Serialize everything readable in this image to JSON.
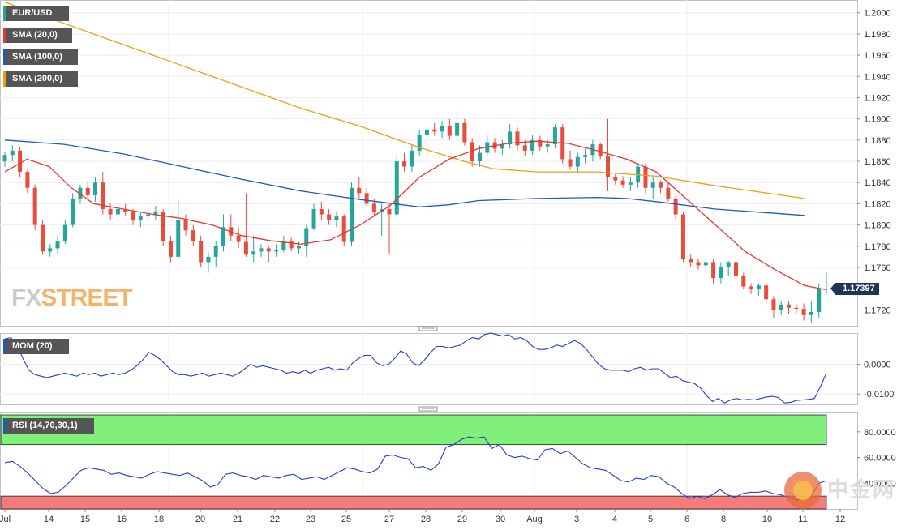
{
  "chart_data": {
    "type": "candlestick",
    "symbol": "EUR/USD",
    "legend": [
      {
        "label": "EUR/USD",
        "color": "#26a69a"
      },
      {
        "label": "SMA (20,0)",
        "color": "#e53935"
      },
      {
        "label": "SMA (100,0)",
        "color": "#1e5bbd"
      },
      {
        "label": "SMA (200,0)",
        "color": "#f39c12"
      }
    ],
    "last_price": "1.17397",
    "price_axis": {
      "min": 1.1705,
      "max": 1.2012,
      "ticks": [
        "1.2000",
        "1.1980",
        "1.1960",
        "1.1940",
        "1.1920",
        "1.1900",
        "1.1880",
        "1.1860",
        "1.1840",
        "1.1820",
        "1.1800",
        "1.1780",
        "1.1760",
        "1.1720"
      ]
    },
    "x_labels": [
      "Jul",
      "14",
      "15",
      "16",
      "18",
      "20",
      "21",
      "22",
      "23",
      "25",
      "27",
      "28",
      "29",
      "30",
      "Aug",
      "3",
      "4",
      "5",
      "6",
      "8",
      "10",
      "11",
      "12"
    ],
    "candles": [
      [
        1.186,
        1.1869,
        1.1855,
        1.1866
      ],
      [
        1.1866,
        1.1875,
        1.186,
        1.187
      ],
      [
        1.187,
        1.1873,
        1.1845,
        1.185
      ],
      [
        1.185,
        1.1852,
        1.183,
        1.1835
      ],
      [
        1.1835,
        1.1838,
        1.1795,
        1.18
      ],
      [
        1.18,
        1.1805,
        1.1772,
        1.1775
      ],
      [
        1.1775,
        1.1782,
        1.177,
        1.1778
      ],
      [
        1.1778,
        1.179,
        1.1772,
        1.1785
      ],
      [
        1.1785,
        1.1805,
        1.1782,
        1.18
      ],
      [
        1.18,
        1.183,
        1.1798,
        1.1825
      ],
      [
        1.1825,
        1.1838,
        1.182,
        1.1835
      ],
      [
        1.1835,
        1.184,
        1.1825,
        1.1828
      ],
      [
        1.1828,
        1.1845,
        1.1822,
        1.184
      ],
      [
        1.184,
        1.185,
        1.181,
        1.1815
      ],
      [
        1.1815,
        1.182,
        1.1805,
        1.181
      ],
      [
        1.181,
        1.1818,
        1.1805,
        1.1815
      ],
      [
        1.1815,
        1.182,
        1.1808,
        1.1812
      ],
      [
        1.1812,
        1.1815,
        1.18,
        1.1805
      ],
      [
        1.1805,
        1.1812,
        1.1798,
        1.1808
      ],
      [
        1.1808,
        1.1815,
        1.1802,
        1.181
      ],
      [
        1.181,
        1.1818,
        1.1805,
        1.1812
      ],
      [
        1.1812,
        1.1815,
        1.178,
        1.1785
      ],
      [
        1.1785,
        1.179,
        1.1765,
        1.177
      ],
      [
        1.177,
        1.1825,
        1.1768,
        1.1805
      ],
      [
        1.1805,
        1.181,
        1.179,
        1.1795
      ],
      [
        1.1795,
        1.18,
        1.178,
        1.1785
      ],
      [
        1.1785,
        1.179,
        1.176,
        1.1765
      ],
      [
        1.1765,
        1.1775,
        1.1755,
        1.177
      ],
      [
        1.177,
        1.1785,
        1.176,
        1.178
      ],
      [
        1.178,
        1.181,
        1.1775,
        1.1798
      ],
      [
        1.1798,
        1.181,
        1.1785,
        1.179
      ],
      [
        1.179,
        1.1798,
        1.1778,
        1.1784
      ],
      [
        1.1784,
        1.183,
        1.177,
        1.1772
      ],
      [
        1.1772,
        1.179,
        1.1765,
        1.1775
      ],
      [
        1.1775,
        1.1782,
        1.177,
        1.1778
      ],
      [
        1.1778,
        1.178,
        1.1765,
        1.1775
      ],
      [
        1.1775,
        1.1782,
        1.177,
        1.1776
      ],
      [
        1.1776,
        1.179,
        1.1774,
        1.1785
      ],
      [
        1.1785,
        1.1788,
        1.1775,
        1.1778
      ],
      [
        1.1778,
        1.1784,
        1.1773,
        1.178
      ],
      [
        1.178,
        1.18,
        1.177,
        1.1797
      ],
      [
        1.1797,
        1.182,
        1.1795,
        1.1815
      ],
      [
        1.1815,
        1.1822,
        1.1805,
        1.181
      ],
      [
        1.181,
        1.1815,
        1.18,
        1.1805
      ],
      [
        1.1805,
        1.1812,
        1.1798,
        1.1808
      ],
      [
        1.1808,
        1.181,
        1.178,
        1.1784
      ],
      [
        1.1784,
        1.184,
        1.178,
        1.1835
      ],
      [
        1.1835,
        1.1845,
        1.1825,
        1.183
      ],
      [
        1.183,
        1.1835,
        1.1818,
        1.182
      ],
      [
        1.182,
        1.1825,
        1.1808,
        1.1812
      ],
      [
        1.1812,
        1.182,
        1.179,
        1.1815
      ],
      [
        1.1815,
        1.182,
        1.1773,
        1.181
      ],
      [
        1.181,
        1.1865,
        1.1808,
        1.186
      ],
      [
        1.186,
        1.1868,
        1.185,
        1.1855
      ],
      [
        1.1855,
        1.1875,
        1.185,
        1.187
      ],
      [
        1.187,
        1.189,
        1.1865,
        1.1885
      ],
      [
        1.1885,
        1.1895,
        1.188,
        1.189
      ],
      [
        1.189,
        1.1896,
        1.1884,
        1.1888
      ],
      [
        1.1888,
        1.1898,
        1.1882,
        1.1893
      ],
      [
        1.1893,
        1.19,
        1.188,
        1.1884
      ],
      [
        1.1884,
        1.1908,
        1.1882,
        1.1896
      ],
      [
        1.1896,
        1.19,
        1.1875,
        1.1878
      ],
      [
        1.1878,
        1.1882,
        1.1855,
        1.186
      ],
      [
        1.186,
        1.1875,
        1.1855,
        1.1868
      ],
      [
        1.1868,
        1.1885,
        1.1865,
        1.1878
      ],
      [
        1.1878,
        1.1882,
        1.1868,
        1.1872
      ],
      [
        1.1872,
        1.188,
        1.1866,
        1.1876
      ],
      [
        1.1876,
        1.1895,
        1.1872,
        1.1888
      ],
      [
        1.1888,
        1.1892,
        1.187,
        1.1875
      ],
      [
        1.1875,
        1.188,
        1.1865,
        1.187
      ],
      [
        1.187,
        1.1885,
        1.1866,
        1.188
      ],
      [
        1.188,
        1.1884,
        1.187,
        1.1874
      ],
      [
        1.1874,
        1.188,
        1.1868,
        1.1876
      ],
      [
        1.1876,
        1.1895,
        1.1872,
        1.1892
      ],
      [
        1.1892,
        1.1895,
        1.1858,
        1.1862
      ],
      [
        1.1862,
        1.187,
        1.1852,
        1.1855
      ],
      [
        1.1855,
        1.1868,
        1.185,
        1.1864
      ],
      [
        1.1864,
        1.1872,
        1.1858,
        1.1866
      ],
      [
        1.1866,
        1.188,
        1.186,
        1.1876
      ],
      [
        1.1876,
        1.1878,
        1.1862,
        1.1865
      ],
      [
        1.1865,
        1.19,
        1.1832,
        1.1845
      ],
      [
        1.1845,
        1.1848,
        1.1838,
        1.1842
      ],
      [
        1.1842,
        1.1846,
        1.1835,
        1.1838
      ],
      [
        1.1838,
        1.1845,
        1.1832,
        1.184
      ],
      [
        1.184,
        1.1858,
        1.1835,
        1.1855
      ],
      [
        1.1855,
        1.1858,
        1.183,
        1.1835
      ],
      [
        1.1835,
        1.1845,
        1.1825,
        1.184
      ],
      [
        1.184,
        1.1842,
        1.183,
        1.1835
      ],
      [
        1.1835,
        1.184,
        1.1822,
        1.1825
      ],
      [
        1.1825,
        1.1828,
        1.1805,
        1.181
      ],
      [
        1.181,
        1.1812,
        1.1765,
        1.1768
      ],
      [
        1.1768,
        1.1772,
        1.176,
        1.1765
      ],
      [
        1.1765,
        1.1768,
        1.1758,
        1.1762
      ],
      [
        1.1762,
        1.1768,
        1.1755,
        1.1765
      ],
      [
        1.1765,
        1.1768,
        1.1745,
        1.175
      ],
      [
        1.175,
        1.1765,
        1.1745,
        1.176
      ],
      [
        1.176,
        1.1766,
        1.1752,
        1.1765
      ],
      [
        1.1765,
        1.177,
        1.1748,
        1.1752
      ],
      [
        1.1752,
        1.1755,
        1.174,
        1.1742
      ],
      [
        1.1742,
        1.1745,
        1.1735,
        1.174
      ],
      [
        1.174,
        1.1745,
        1.1733,
        1.1743
      ],
      [
        1.1743,
        1.1746,
        1.1725,
        1.173
      ],
      [
        1.173,
        1.1733,
        1.1712,
        1.172
      ],
      [
        1.172,
        1.1728,
        1.1715,
        1.1725
      ],
      [
        1.1725,
        1.1728,
        1.1716,
        1.1722
      ],
      [
        1.1722,
        1.1726,
        1.1716,
        1.1721
      ],
      [
        1.1721,
        1.1726,
        1.171,
        1.1715
      ],
      [
        1.1715,
        1.1728,
        1.1708,
        1.1718
      ],
      [
        1.1718,
        1.1745,
        1.1712,
        1.174
      ],
      [
        1.174,
        1.1755,
        1.1735,
        1.174
      ]
    ],
    "sma20": [
      [
        0,
        1.185
      ],
      [
        3,
        1.1862
      ],
      [
        6,
        1.1855
      ],
      [
        9,
        1.1835
      ],
      [
        12,
        1.182
      ],
      [
        16,
        1.1815
      ],
      [
        20,
        1.181
      ],
      [
        24,
        1.1806
      ],
      [
        28,
        1.18
      ],
      [
        32,
        1.179
      ],
      [
        36,
        1.1785
      ],
      [
        40,
        1.1782
      ],
      [
        44,
        1.1786
      ],
      [
        48,
        1.18
      ],
      [
        52,
        1.1818
      ],
      [
        56,
        1.1845
      ],
      [
        60,
        1.1862
      ],
      [
        64,
        1.1872
      ],
      [
        68,
        1.1877
      ],
      [
        72,
        1.1879
      ],
      [
        76,
        1.1877
      ],
      [
        80,
        1.187
      ],
      [
        84,
        1.1862
      ],
      [
        88,
        1.185
      ],
      [
        92,
        1.1825
      ],
      [
        96,
        1.18
      ],
      [
        100,
        1.1775
      ],
      [
        104,
        1.1758
      ],
      [
        108,
        1.1743
      ],
      [
        111,
        1.1739
      ]
    ],
    "sma100": [
      [
        0,
        1.188
      ],
      [
        8,
        1.1876
      ],
      [
        16,
        1.1867
      ],
      [
        24,
        1.1855
      ],
      [
        32,
        1.1843
      ],
      [
        40,
        1.1832
      ],
      [
        48,
        1.1824
      ],
      [
        56,
        1.1817
      ],
      [
        60,
        1.1819
      ],
      [
        64,
        1.1823
      ],
      [
        68,
        1.1824
      ],
      [
        72,
        1.1825
      ],
      [
        80,
        1.1826
      ],
      [
        84,
        1.1825
      ],
      [
        88,
        1.1822
      ],
      [
        96,
        1.1815
      ],
      [
        104,
        1.1811
      ],
      [
        108,
        1.1809
      ]
    ],
    "sma200": [
      [
        0,
        1.201
      ],
      [
        8,
        1.199
      ],
      [
        16,
        1.197
      ],
      [
        24,
        1.195
      ],
      [
        32,
        1.193
      ],
      [
        40,
        1.191
      ],
      [
        48,
        1.1893
      ],
      [
        56,
        1.1873
      ],
      [
        62,
        1.186
      ],
      [
        66,
        1.1853
      ],
      [
        72,
        1.185
      ],
      [
        80,
        1.185
      ],
      [
        88,
        1.1846
      ],
      [
        96,
        1.1837
      ],
      [
        104,
        1.1829
      ],
      [
        108,
        1.1825
      ]
    ],
    "mom": {
      "label": "MOM (20)",
      "ticks": [
        "0.0000",
        "-0.0100"
      ],
      "range": [
        -0.0135,
        0.0105
      ],
      "values": [
        0.0085,
        0.009,
        0.0065,
        0.002,
        -0.002,
        -0.0035,
        -0.004,
        -0.0045,
        -0.004,
        -0.0035,
        -0.003,
        -0.0035,
        -0.004,
        -0.003,
        -0.0035,
        -0.003,
        -0.004,
        -0.0035,
        -0.003,
        -0.0035,
        -0.003,
        -0.002,
        -0.0005,
        0.0015,
        0.004,
        0.003,
        0.0015,
        -0.0005,
        -0.0025,
        -0.0035,
        -0.0035,
        -0.004,
        -0.0035,
        -0.003,
        -0.004,
        -0.0035,
        -0.003,
        -0.0035,
        -0.004,
        -0.003,
        -0.0015,
        0.0,
        -0.001,
        -0.0005,
        -0.001,
        -0.0015,
        -0.002,
        -0.003,
        -0.0025,
        -0.003,
        -0.002,
        -0.003,
        -0.002,
        -0.0015,
        -0.001,
        -0.002,
        -0.0015,
        -0.002,
        0.0005,
        0.002,
        0.003,
        0.003,
        0.0005,
        -0.0005,
        0.0,
        0.002,
        0.0045,
        0.0035,
        0.0005,
        -0.0005,
        0.0015,
        0.004,
        0.006,
        0.006,
        0.0055,
        0.006,
        0.0065,
        0.008,
        0.009,
        0.0085,
        0.01,
        0.0105,
        0.01,
        0.0095,
        0.01,
        0.0085,
        0.009,
        0.008,
        0.006,
        0.005,
        0.005,
        0.0055,
        0.0065,
        0.006,
        0.007,
        0.008,
        0.007,
        0.005,
        0.0025,
        0.0,
        -0.0015,
        -0.002,
        -0.002,
        -0.002,
        -0.0025,
        -0.0015,
        -0.001,
        -0.002,
        -0.0015,
        -0.0015,
        -0.003,
        -0.0045,
        -0.004,
        -0.0055,
        -0.006,
        -0.0065,
        -0.008,
        -0.0105,
        -0.0125,
        -0.0115,
        -0.013,
        -0.012,
        -0.0115,
        -0.012,
        -0.0118,
        -0.012,
        -0.0115,
        -0.011,
        -0.0108,
        -0.0112,
        -0.013,
        -0.0128,
        -0.0122,
        -0.012,
        -0.0118,
        -0.0115,
        -0.0075,
        -0.003
      ]
    },
    "rsi": {
      "label": "RSI (14,70,30,1)",
      "ticks": [
        "80.0000",
        "60.0000",
        "40.0000"
      ],
      "range": [
        20,
        95
      ],
      "overbought": 70,
      "oversold": 30,
      "values": [
        56,
        57,
        53,
        48,
        42,
        36,
        32,
        33,
        38,
        44,
        50,
        52,
        51,
        50,
        47,
        48,
        46,
        45,
        44,
        47,
        49,
        48,
        47,
        46,
        48,
        45,
        42,
        37,
        39,
        47,
        48,
        46,
        45,
        43,
        46,
        45,
        44,
        46,
        47,
        43,
        44,
        45,
        43,
        46,
        49,
        52,
        51,
        49,
        48,
        51,
        61,
        62,
        60,
        59,
        52,
        53,
        50,
        55,
        68,
        70,
        74,
        76,
        75,
        76,
        67,
        70,
        62,
        60,
        61,
        59,
        58,
        66,
        67,
        63,
        65,
        60,
        55,
        52,
        51,
        50,
        46,
        42,
        41,
        44,
        43,
        46,
        45,
        40,
        37,
        32,
        28,
        30,
        28,
        31,
        35,
        31,
        29,
        32,
        33,
        33,
        34,
        32,
        31,
        29,
        27,
        28,
        30,
        40,
        42
      ]
    }
  }
}
